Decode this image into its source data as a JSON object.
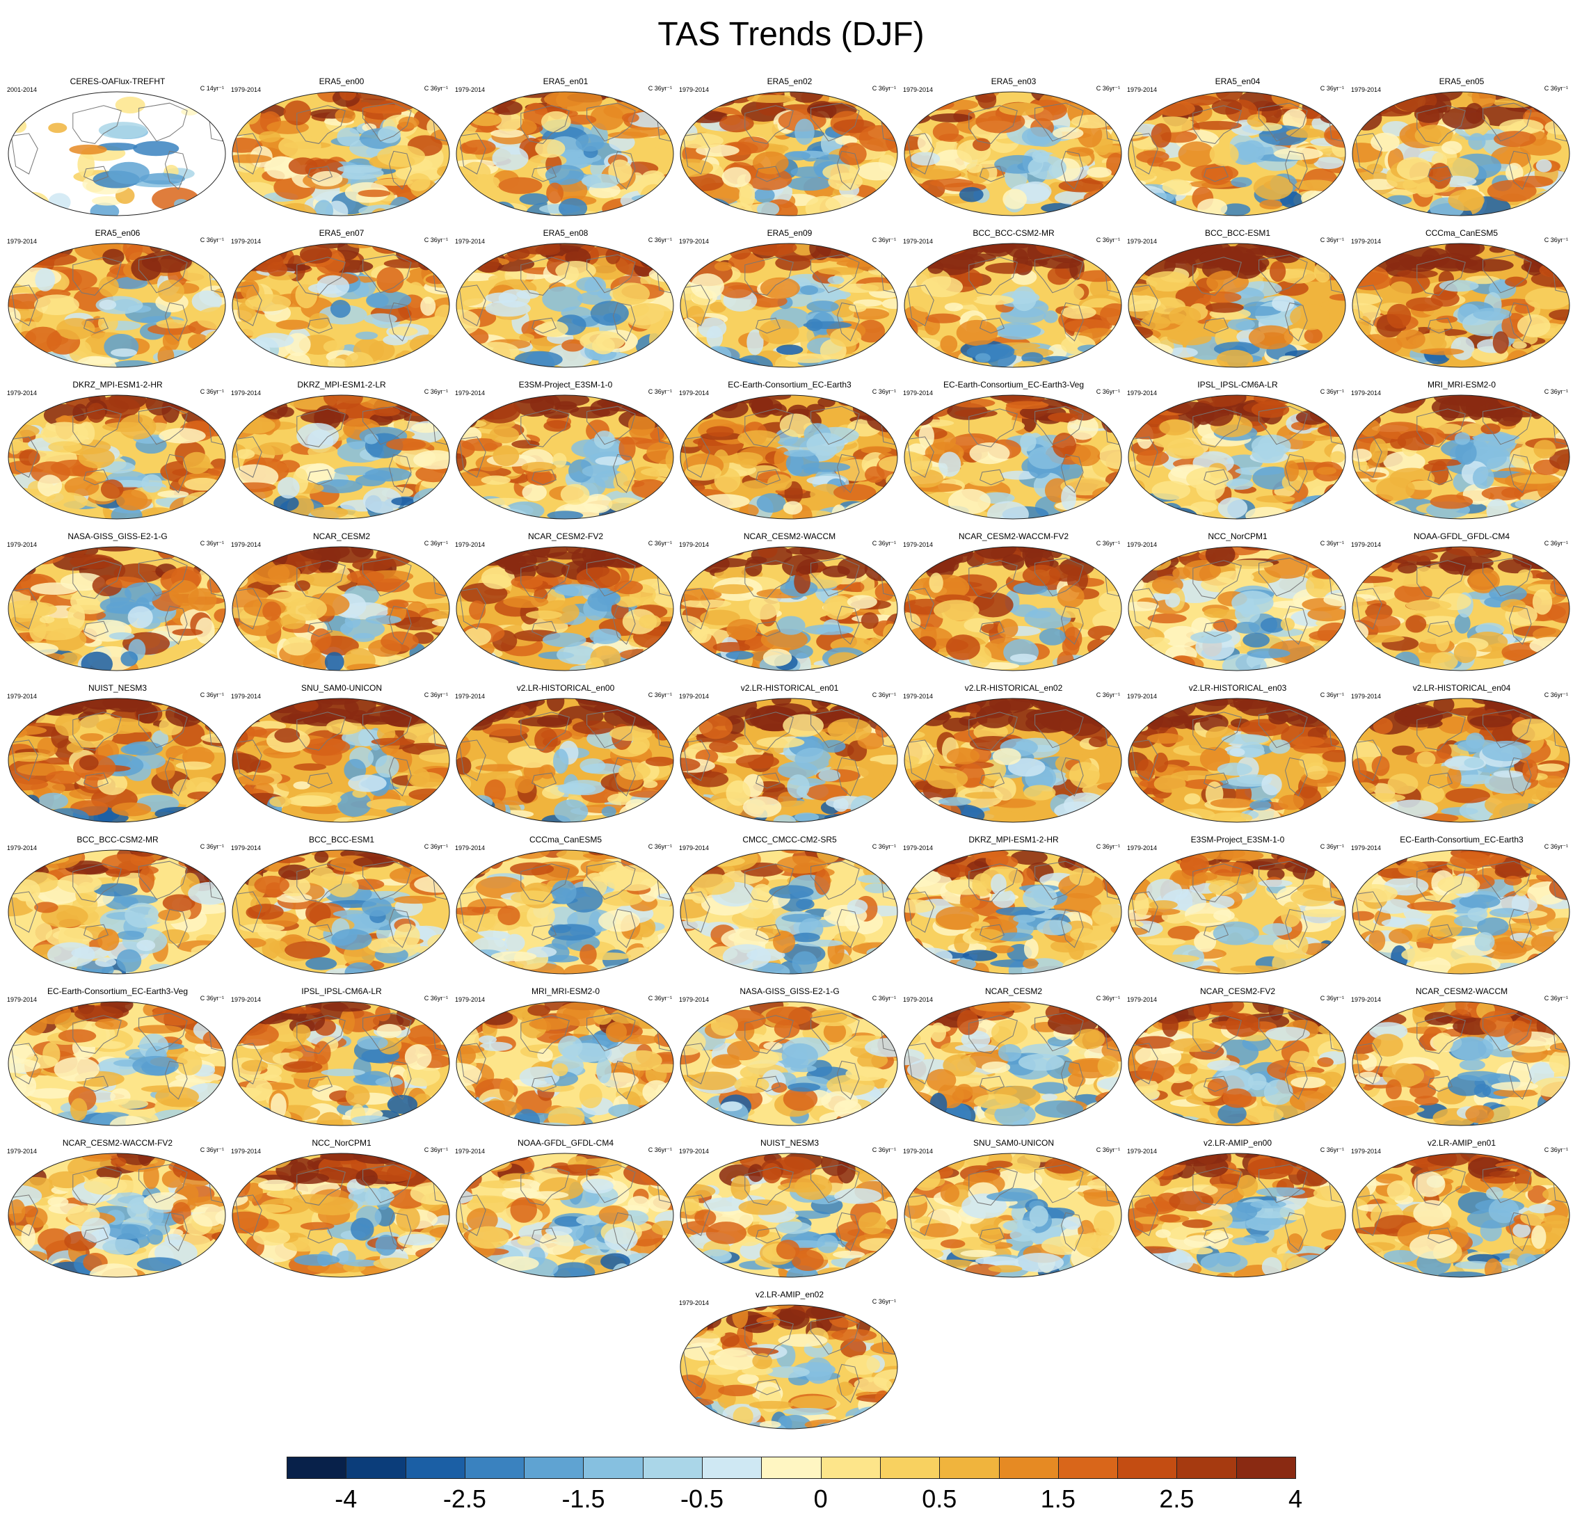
{
  "title": "TAS Trends (DJF)",
  "chart_data": {
    "type": "heatmap",
    "title": "TAS Trends (DJF)",
    "projection": "Robinson (Pacific-centered global maps)",
    "panels": [
      {
        "name": "CERES-OAFlux-TREFHT",
        "period": "2001-2014",
        "unit": "C 14yr⁻¹",
        "warm": 0.2,
        "land_masked": true
      },
      {
        "name": "ERA5_en00",
        "period": "1979-2014",
        "unit": "C 36yr⁻¹",
        "warm": 0.5
      },
      {
        "name": "ERA5_en01",
        "period": "1979-2014",
        "unit": "C 36yr⁻¹",
        "warm": 0.5
      },
      {
        "name": "ERA5_en02",
        "period": "1979-2014",
        "unit": "C 36yr⁻¹",
        "warm": 0.5
      },
      {
        "name": "ERA5_en03",
        "period": "1979-2014",
        "unit": "C 36yr⁻¹",
        "warm": 0.5
      },
      {
        "name": "ERA5_en04",
        "period": "1979-2014",
        "unit": "C 36yr⁻¹",
        "warm": 0.5
      },
      {
        "name": "ERA5_en05",
        "period": "1979-2014",
        "unit": "C 36yr⁻¹",
        "warm": 0.5
      },
      {
        "name": "ERA5_en06",
        "period": "1979-2014",
        "unit": "C 36yr⁻¹",
        "warm": 0.5
      },
      {
        "name": "ERA5_en07",
        "period": "1979-2014",
        "unit": "C 36yr⁻¹",
        "warm": 0.5
      },
      {
        "name": "ERA5_en08",
        "period": "1979-2014",
        "unit": "C 36yr⁻¹",
        "warm": 0.5
      },
      {
        "name": "ERA5_en09",
        "period": "1979-2014",
        "unit": "C 36yr⁻¹",
        "warm": 0.5
      },
      {
        "name": "BCC_BCC-CSM2-MR",
        "period": "1979-2014",
        "unit": "C 36yr⁻¹",
        "warm": 0.7
      },
      {
        "name": "BCC_BCC-ESM1",
        "period": "1979-2014",
        "unit": "C 36yr⁻¹",
        "warm": 0.8
      },
      {
        "name": "CCCma_CanESM5",
        "period": "1979-2014",
        "unit": "C 36yr⁻¹",
        "warm": 0.9
      },
      {
        "name": "DKRZ_MPI-ESM1-2-HR",
        "period": "1979-2014",
        "unit": "C 36yr⁻¹",
        "warm": 0.55
      },
      {
        "name": "DKRZ_MPI-ESM1-2-LR",
        "period": "1979-2014",
        "unit": "C 36yr⁻¹",
        "warm": 0.5
      },
      {
        "name": "E3SM-Project_E3SM-1-0",
        "period": "1979-2014",
        "unit": "C 36yr⁻¹",
        "warm": 0.75
      },
      {
        "name": "EC-Earth-Consortium_EC-Earth3",
        "period": "1979-2014",
        "unit": "C 36yr⁻¹",
        "warm": 0.8
      },
      {
        "name": "EC-Earth-Consortium_EC-Earth3-Veg",
        "period": "1979-2014",
        "unit": "C 36yr⁻¹",
        "warm": 0.6
      },
      {
        "name": "IPSL_IPSL-CM6A-LR",
        "period": "1979-2014",
        "unit": "C 36yr⁻¹",
        "warm": 0.6
      },
      {
        "name": "MRI_MRI-ESM2-0",
        "period": "1979-2014",
        "unit": "C 36yr⁻¹",
        "warm": 0.65
      },
      {
        "name": "NASA-GISS_GISS-E2-1-G",
        "period": "1979-2014",
        "unit": "C 36yr⁻¹",
        "warm": 0.65
      },
      {
        "name": "NCAR_CESM2",
        "period": "1979-2014",
        "unit": "C 36yr⁻¹",
        "warm": 0.75
      },
      {
        "name": "NCAR_CESM2-FV2",
        "period": "1979-2014",
        "unit": "C 36yr⁻¹",
        "warm": 0.8
      },
      {
        "name": "NCAR_CESM2-WACCM",
        "period": "1979-2014",
        "unit": "C 36yr⁻¹",
        "warm": 0.75
      },
      {
        "name": "NCAR_CESM2-WACCM-FV2",
        "period": "1979-2014",
        "unit": "C 36yr⁻¹",
        "warm": 0.75
      },
      {
        "name": "NCC_NorCPM1",
        "period": "1979-2014",
        "unit": "C 36yr⁻¹",
        "warm": 0.4
      },
      {
        "name": "NOAA-GFDL_GFDL-CM4",
        "period": "1979-2014",
        "unit": "C 36yr⁻¹",
        "warm": 0.7
      },
      {
        "name": "NUIST_NESM3",
        "period": "1979-2014",
        "unit": "C 36yr⁻¹",
        "warm": 0.8
      },
      {
        "name": "SNU_SAM0-UNICON",
        "period": "1979-2014",
        "unit": "C 36yr⁻¹",
        "warm": 0.8
      },
      {
        "name": "v2.LR-HISTORICAL_en00",
        "period": "1979-2014",
        "unit": "C 36yr⁻¹",
        "warm": 0.8
      },
      {
        "name": "v2.LR-HISTORICAL_en01",
        "period": "1979-2014",
        "unit": "C 36yr⁻¹",
        "warm": 0.8
      },
      {
        "name": "v2.LR-HISTORICAL_en02",
        "period": "1979-2014",
        "unit": "C 36yr⁻¹",
        "warm": 0.8
      },
      {
        "name": "v2.LR-HISTORICAL_en03",
        "period": "1979-2014",
        "unit": "C 36yr⁻¹",
        "warm": 0.8
      },
      {
        "name": "v2.LR-HISTORICAL_en04",
        "period": "1979-2014",
        "unit": "C 36yr⁻¹",
        "warm": 0.8
      },
      {
        "name": "BCC_BCC-CSM2-MR",
        "period": "1979-2014",
        "unit": "C 36yr⁻¹",
        "warm": 0.45
      },
      {
        "name": "BCC_BCC-ESM1",
        "period": "1979-2014",
        "unit": "C 36yr⁻¹",
        "warm": 0.5
      },
      {
        "name": "CCCma_CanESM5",
        "period": "1979-2014",
        "unit": "C 36yr⁻¹",
        "warm": 0.4
      },
      {
        "name": "CMCC_CMCC-CM2-SR5",
        "period": "1979-2014",
        "unit": "C 36yr⁻¹",
        "warm": 0.35
      },
      {
        "name": "DKRZ_MPI-ESM1-2-HR",
        "period": "1979-2014",
        "unit": "C 36yr⁻¹",
        "warm": 0.5
      },
      {
        "name": "E3SM-Project_E3SM-1-0",
        "period": "1979-2014",
        "unit": "C 36yr⁻¹",
        "warm": 0.5
      },
      {
        "name": "EC-Earth-Consortium_EC-Earth3",
        "period": "1979-2014",
        "unit": "C 36yr⁻¹",
        "warm": 0.45
      },
      {
        "name": "EC-Earth-Consortium_EC-Earth3-Veg",
        "period": "1979-2014",
        "unit": "C 36yr⁻¹",
        "warm": 0.45
      },
      {
        "name": "IPSL_IPSL-CM6A-LR",
        "period": "1979-2014",
        "unit": "C 36yr⁻¹",
        "warm": 0.5
      },
      {
        "name": "MRI_MRI-ESM2-0",
        "period": "1979-2014",
        "unit": "C 36yr⁻¹",
        "warm": 0.45
      },
      {
        "name": "NASA-GISS_GISS-E2-1-G",
        "period": "1979-2014",
        "unit": "C 36yr⁻¹",
        "warm": 0.35
      },
      {
        "name": "NCAR_CESM2",
        "period": "1979-2014",
        "unit": "C 36yr⁻¹",
        "warm": 0.45
      },
      {
        "name": "NCAR_CESM2-FV2",
        "period": "1979-2014",
        "unit": "C 36yr⁻¹",
        "warm": 0.5
      },
      {
        "name": "NCAR_CESM2-WACCM",
        "period": "1979-2014",
        "unit": "C 36yr⁻¹",
        "warm": 0.45
      },
      {
        "name": "NCAR_CESM2-WACCM-FV2",
        "period": "1979-2014",
        "unit": "C 36yr⁻¹",
        "warm": 0.45
      },
      {
        "name": "NCC_NorCPM1",
        "period": "1979-2014",
        "unit": "C 36yr⁻¹",
        "warm": 0.5
      },
      {
        "name": "NOAA-GFDL_GFDL-CM4",
        "period": "1979-2014",
        "unit": "C 36yr⁻¹",
        "warm": 0.4
      },
      {
        "name": "NUIST_NESM3",
        "period": "1979-2014",
        "unit": "C 36yr⁻¹",
        "warm": 0.45
      },
      {
        "name": "SNU_SAM0-UNICON",
        "period": "1979-2014",
        "unit": "C 36yr⁻¹",
        "warm": 0.4
      },
      {
        "name": "v2.LR-AMIP_en00",
        "period": "1979-2014",
        "unit": "C 36yr⁻¹",
        "warm": 0.5
      },
      {
        "name": "v2.LR-AMIP_en01",
        "period": "1979-2014",
        "unit": "C 36yr⁻¹",
        "warm": 0.5
      },
      {
        "name": "v2.LR-AMIP_en02",
        "period": "1979-2014",
        "unit": "C 36yr⁻¹",
        "warm": 0.5
      }
    ],
    "colorbar": {
      "levels": [
        -4,
        -3.5,
        -3,
        -2.5,
        -2,
        -1.5,
        -1,
        -0.5,
        -0.25,
        0,
        0.25,
        0.5,
        1,
        1.5,
        2,
        2.5,
        3,
        3.5,
        4
      ],
      "tick_labels": [
        "-4",
        "-2.5",
        "-1.5",
        "-0.5",
        "0",
        "0.5",
        "1.5",
        "2.5",
        "4"
      ],
      "colors": [
        "#08214a",
        "#0b3d7a",
        "#1b5fa5",
        "#3a82bf",
        "#5fa3d2",
        "#86c0e0",
        "#aad6e8",
        "#cfe8f3",
        "#fff6c2",
        "#fde58a",
        "#f8d160",
        "#f0b43d",
        "#e68a23",
        "#d9661a",
        "#c44d12",
        "#a63a10",
        "#8a2a12"
      ]
    }
  }
}
